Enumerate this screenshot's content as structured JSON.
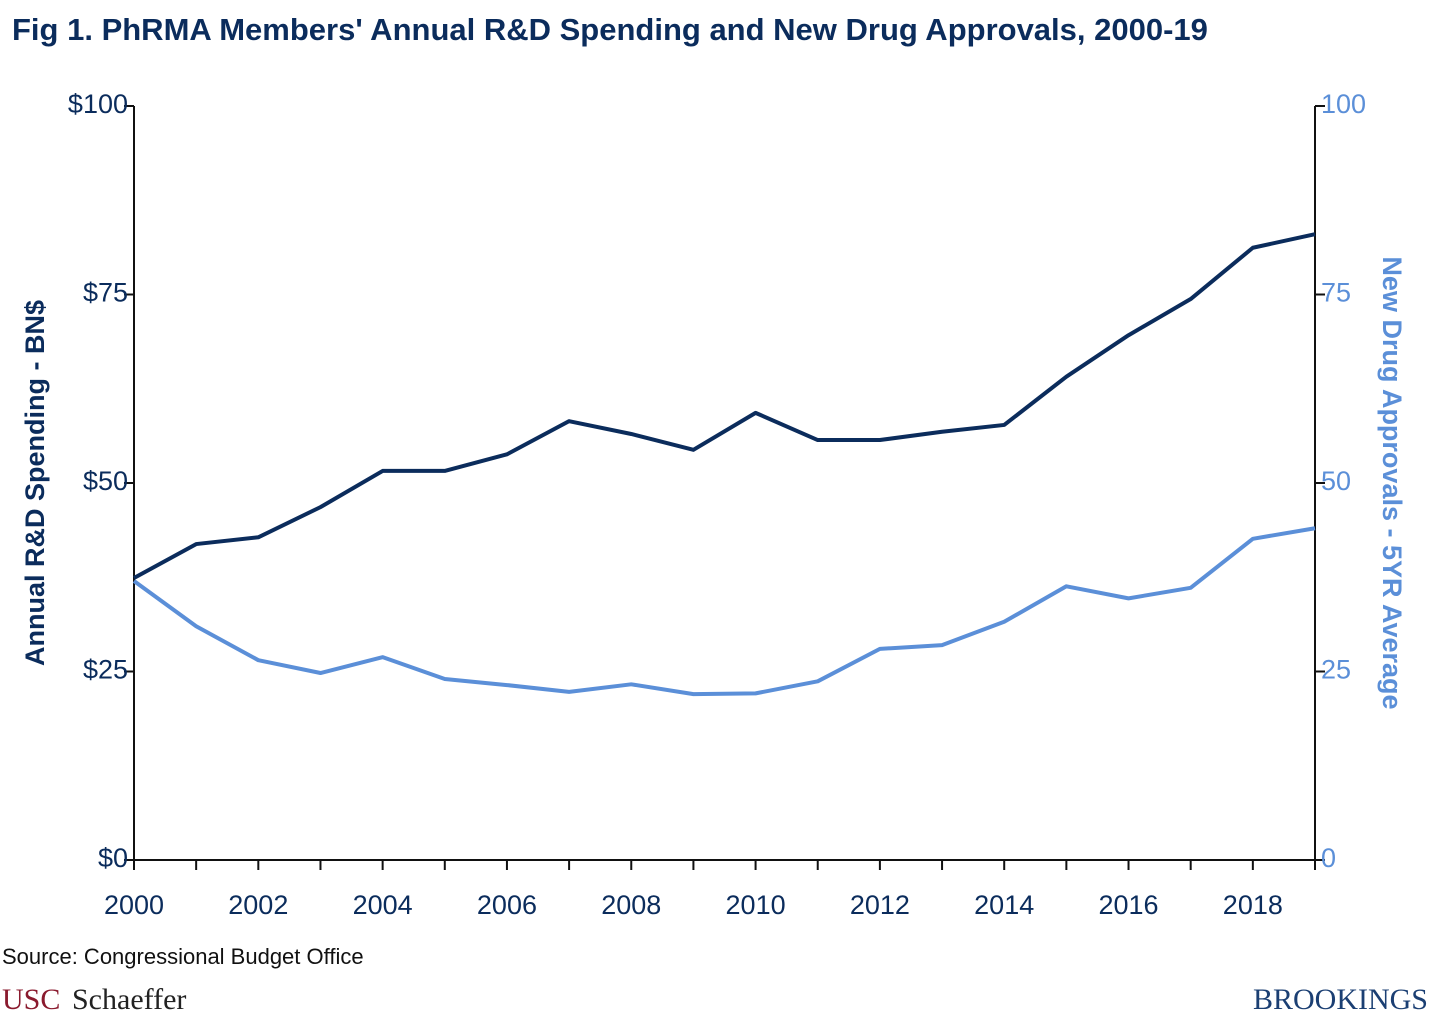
{
  "chart_data": {
    "type": "line",
    "title": "Fig 1. PhRMA Members' Annual R&D Spending and New Drug Approvals, 2000-19",
    "x": [
      2000,
      2001,
      2002,
      2003,
      2004,
      2005,
      2006,
      2007,
      2008,
      2009,
      2010,
      2011,
      2012,
      2013,
      2014,
      2015,
      2016,
      2017,
      2018,
      2019
    ],
    "xlim": [
      2000,
      2019
    ],
    "xticks": [
      2000,
      2002,
      2004,
      2006,
      2008,
      2010,
      2012,
      2014,
      2016,
      2018
    ],
    "xminorticks": [
      2001,
      2003,
      2005,
      2007,
      2009,
      2011,
      2013,
      2015,
      2017,
      2019
    ],
    "ylabel": "Annual R&D Spending - BN$",
    "ylim": [
      0,
      100
    ],
    "yticks": [
      {
        "value": 0,
        "label": "$0"
      },
      {
        "value": 25,
        "label": "$25"
      },
      {
        "value": 50,
        "label": "$50"
      },
      {
        "value": 75,
        "label": "$75"
      },
      {
        "value": 100,
        "label": "$100"
      }
    ],
    "y2label": "New Drug Approvals - 5YR Average",
    "y2lim": [
      0,
      100
    ],
    "y2ticks": [
      0,
      25,
      50,
      75,
      100
    ],
    "axis_colors": {
      "y": "#0b2c5c",
      "y2": "#5b8fd8"
    },
    "series": [
      {
        "name": "Annual R&D Spending",
        "color": "#0b2c5c",
        "axis": "y",
        "values": [
          37.4,
          41.9,
          42.8,
          46.8,
          51.6,
          51.6,
          53.8,
          58.2,
          56.5,
          54.4,
          59.3,
          55.7,
          55.7,
          56.8,
          57.7,
          64.1,
          69.6,
          74.4,
          81.2,
          83.0
        ]
      },
      {
        "name": "New Drug Approvals - 5YR Average",
        "color": "#5b8fd8",
        "axis": "y2",
        "values": [
          37.0,
          31.0,
          26.5,
          24.8,
          26.9,
          24.0,
          23.2,
          22.3,
          23.3,
          22.0,
          22.1,
          23.7,
          28.0,
          28.5,
          31.6,
          36.3,
          34.7,
          36.1,
          42.6,
          44.0
        ]
      }
    ],
    "source": "Source: Congressional Budget Office",
    "logo_usc": "USC",
    "logo_schaeffer": "Schaeffer",
    "logo_brookings": "BROOKINGS"
  }
}
